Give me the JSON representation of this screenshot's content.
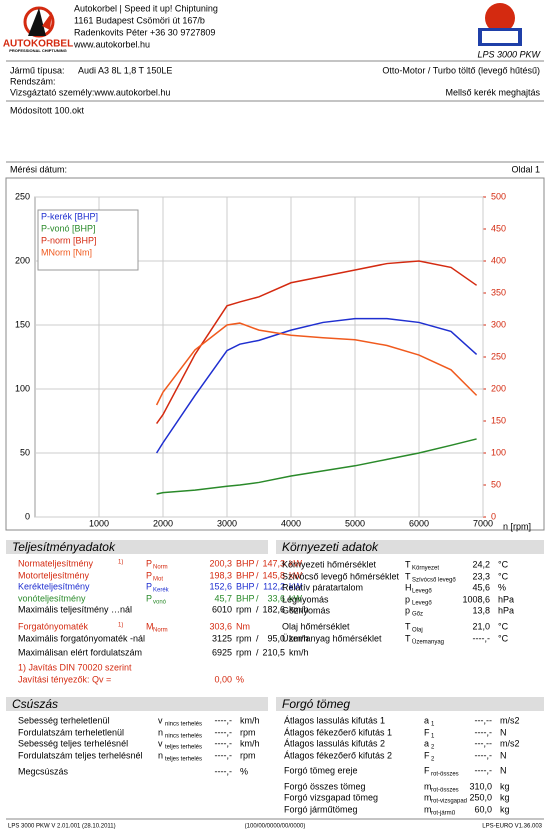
{
  "header": {
    "company_lines": [
      "Autokorbel | Speed it up! Chiptuning",
      "1161 Budapest Csömöri út 167/b",
      "Radenkovits Péter +36 30 9727809",
      "www.autokorbel.hu"
    ],
    "brand": "AUTOKORBEL",
    "brand_sub": "PROFESSIONAL CHIPTUNING",
    "device": "LPS 3000 PKW"
  },
  "vehicle": {
    "type_label": "Jármű típusa:",
    "type_value": "Audi A3 8L 1,8 T 150LE",
    "engine": "Otto-Motor / Turbo töltő (levegő hűtésű)",
    "plate_label": "Rendszám:",
    "inspector": "Vizsgáztató személy:www.autokorbel.hu",
    "drive": "Mellső kerék meghajtás"
  },
  "note": "Módosított 100.okt",
  "measure": {
    "date_label": "Mérési dátum:",
    "page": "Oldal 1"
  },
  "chart_data": {
    "type": "line",
    "x_label": "n [rpm]",
    "x": [
      1900,
      2000,
      2500,
      3000,
      3200,
      3500,
      4000,
      4500,
      5000,
      5500,
      6000,
      6500,
      6900
    ],
    "series": [
      {
        "name": "P-kerék [BHP]",
        "color": "#1f2fd0",
        "values": [
          50,
          58,
          95,
          130,
          135,
          138,
          146,
          152,
          155,
          155,
          152,
          145,
          127
        ]
      },
      {
        "name": "P-vonó [BHP]",
        "color": "#2a8a2a",
        "values": [
          18,
          19,
          21,
          24,
          25,
          27,
          32,
          36,
          40,
          45,
          50,
          56,
          61
        ]
      },
      {
        "name": "P-norm [BHP]",
        "color": "#d42a10",
        "values": [
          73,
          80,
          127,
          165,
          168,
          172,
          183,
          188,
          193,
          198,
          200,
          195,
          181
        ]
      },
      {
        "name": "MNorm [Nm]",
        "color": "#f05a1e",
        "axis": "y2",
        "values": [
          175,
          195,
          261,
          300,
          303,
          292,
          284,
          280,
          277,
          268,
          253,
          230,
          190
        ]
      }
    ],
    "xlim": [
      0,
      7000
    ],
    "xticks": [
      1000,
      2000,
      3000,
      4000,
      5000,
      6000,
      7000
    ],
    "ylim": [
      0,
      250
    ],
    "yticks": [
      0,
      50,
      100,
      150,
      200,
      250
    ],
    "y2lim": [
      0,
      500
    ],
    "y2ticks": [
      0,
      50,
      100,
      150,
      200,
      250,
      300,
      350,
      400,
      450,
      500
    ],
    "grid": true,
    "legend": "top-left"
  },
  "performance": {
    "title": "Teljesítményadatok",
    "rows": [
      {
        "label": "Normateljesítmény",
        "note": "1)",
        "sym": "P",
        "sub": "Norm",
        "v1": "200,3",
        "u1": "BHP",
        "sep": "/",
        "v2": "147,3",
        "u2": "kW",
        "color": "#d42a10"
      },
      {
        "label": "Motorteljesítmény",
        "sym": "P",
        "sub": "Mot",
        "v1": "198,3",
        "u1": "BHP",
        "sep": "/",
        "v2": "145,8",
        "u2": "kW",
        "color": "#d42a10"
      },
      {
        "label": "Kerékteljesítmény",
        "sym": "P",
        "sub": "Kerék",
        "v1": "152,6",
        "u1": "BHP",
        "sep": "/",
        "v2": "112,2",
        "u2": "kW",
        "color": "#1f2fd0"
      },
      {
        "label": "vonóteljesítmény",
        "sym": "P",
        "sub": "vonó",
        "v1": "45,7",
        "u1": "BHP",
        "sep": "/",
        "v2": "33,6",
        "u2": "kW",
        "color": "#2a8a2a"
      },
      {
        "label": "Maximális teljesítmény …nál",
        "v1": "6010",
        "u1": "rpm",
        "sep": "/",
        "v2": "182,6",
        "u2": "km/h",
        "color": "#000000"
      },
      {
        "label": "Forgatónyomaték",
        "note": "1)",
        "sym": "M",
        "sub": "Norm",
        "v1": "303,6",
        "u1": "Nm",
        "color": "#d42a10"
      },
      {
        "label": "Maximális forgatónyomaték -nál",
        "v1": "3125",
        "u1": "rpm",
        "sep": "/",
        "v2": "95,0",
        "u2": "km/h",
        "color": "#000000"
      },
      {
        "label": "Maximálisan elért fordulatszám",
        "v1": "6925",
        "u1": "rpm",
        "sep": "/",
        "v2": "210,5",
        "u2": "km/h",
        "color": "#000000"
      },
      {
        "label": "1) Javítás DIN 70020 szerint",
        "color": "#d42a10"
      },
      {
        "label": "Javítási tényezők: Qv =",
        "v1": "0,00",
        "u1": "%",
        "color": "#d42a10"
      }
    ]
  },
  "environment": {
    "title": "Környezeti adatok",
    "rows": [
      {
        "label": "Környezeti hőmérséklet",
        "sym": "T",
        "sub": "Környezet",
        "v1": "24,2",
        "u1": "°C"
      },
      {
        "label": "Szívócső levegő hőmérséklet",
        "sym": "T",
        "sub": "Szívócső levegő",
        "v1": "23,3",
        "u1": "°C"
      },
      {
        "label": "Relatív páratartalom",
        "sym": "H",
        "sub": "Levegő",
        "v1": "45,6",
        "u1": "%"
      },
      {
        "label": "Légnyomás",
        "sym": "p",
        "sub": "Levegő",
        "v1": "1008,6",
        "u1": "hPa"
      },
      {
        "label": "Gőznyomás",
        "sym": "p",
        "sub": "Gőz",
        "v1": "13,8",
        "u1": "hPa"
      },
      {
        "label": "Olaj hőmérséklet",
        "sym": "T",
        "sub": "Olaj",
        "v1": "21,0",
        "u1": "°C"
      },
      {
        "label": "Üzemanyag hőmérséklet",
        "sym": "T",
        "sub": "Üzemanyag",
        "v1": "----,-",
        "u1": "°C"
      }
    ]
  },
  "slip": {
    "title": "Csúszás",
    "rows": [
      {
        "label": "Sebesség terheletlenül",
        "sym": "v",
        "sub": "nincs terhelés",
        "v1": "----,-",
        "u1": "km/h"
      },
      {
        "label": "Fordulatszám terheletlenül",
        "sym": "n",
        "sub": "nincs terhelés",
        "v1": "----,-",
        "u1": "rpm"
      },
      {
        "label": "Sebesség teljes terhelésnél",
        "sym": "v",
        "sub": "teljes terhelés",
        "v1": "----,-",
        "u1": "km/h"
      },
      {
        "label": "Fordulatszám teljes terhelésnél",
        "sym": "n",
        "sub": "teljes terhelés",
        "v1": "----,-",
        "u1": "rpm"
      },
      {
        "label": "Megcsúszás",
        "v1": "----,-",
        "u1": "%"
      }
    ]
  },
  "mass": {
    "title": "Forgó tömeg",
    "rows": [
      {
        "label": "Átlagos lassulás kifutás 1",
        "sym": "a",
        "sub": "1",
        "v1": "---,--",
        "u1": "m/s2"
      },
      {
        "label": "Átlagos fékezőerő kifutás 1",
        "sym": "F",
        "sub": "1",
        "v1": "----,-",
        "u1": "N"
      },
      {
        "label": "Átlagos lassulás kifutás 2",
        "sym": "a",
        "sub": "2",
        "v1": "---,--",
        "u1": "m/s2"
      },
      {
        "label": "Átlagos fékezőerő kifutás 2",
        "sym": "F",
        "sub": "2",
        "v1": "----,-",
        "u1": "N"
      },
      {
        "label": "Forgó tömeg ereje",
        "sym": "F",
        "sub": "rot-összes",
        "v1": "----,-",
        "u1": "N"
      },
      {
        "label": "Forgó összes tömeg",
        "sym": "m",
        "sub": "rot-összes",
        "v1": "310,0",
        "u1": "kg"
      },
      {
        "label": "Forgó vizsgapad tömeg",
        "sym": "m",
        "sub": "rot-vizsgapad",
        "v1": "250,0",
        "u1": "kg"
      },
      {
        "label": "Forgó járműtömeg",
        "sym": "m",
        "sub": "rot-jármű",
        "v1": "60,0",
        "u1": "kg"
      }
    ]
  },
  "footer": {
    "left": "LPS 3000 PKW V 2.01.001 (28.10.2011)",
    "center": "(100/00/0000/00/0000)",
    "right": "LPS-EURO V1.36.003"
  }
}
